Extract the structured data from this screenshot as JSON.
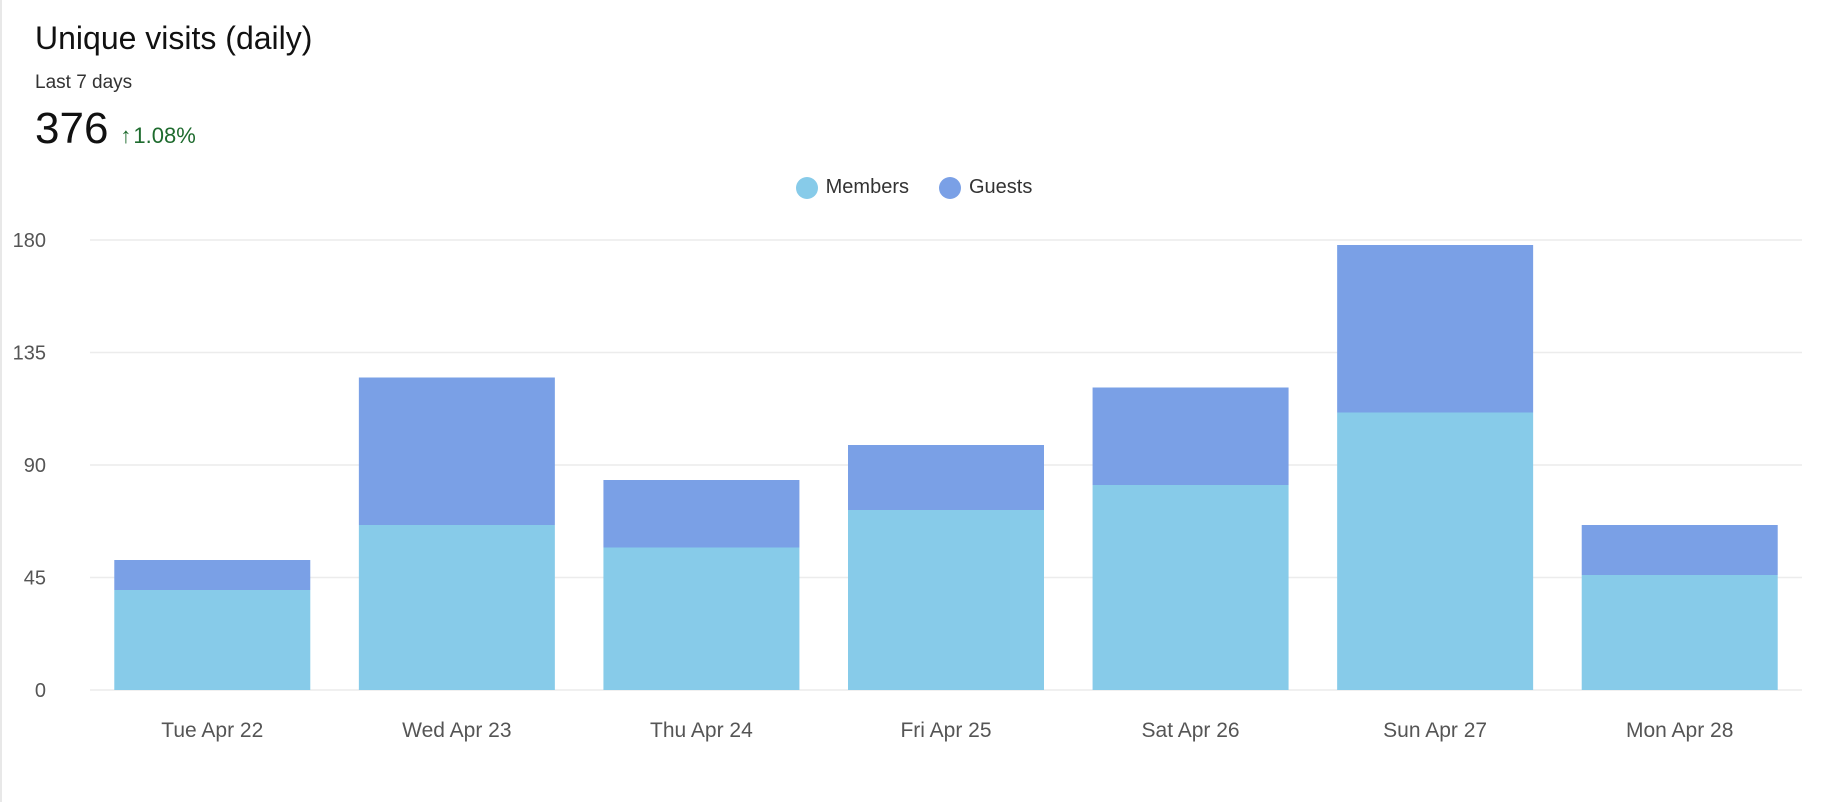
{
  "card": {
    "title": "Unique visits (daily)",
    "subtitle": "Last 7 days",
    "total": "376",
    "delta": "1.08%",
    "delta_icon": "arrow-up-icon",
    "delta_color": "#1e6b2e"
  },
  "chart_data": {
    "type": "bar",
    "stacked": true,
    "categories": [
      "Tue Apr 22",
      "Wed Apr 23",
      "Thu Apr 24",
      "Fri Apr 25",
      "Sat Apr 26",
      "Sun Apr 27",
      "Mon Apr 28"
    ],
    "series": [
      {
        "name": "Members",
        "color": "#87cbe9",
        "values": [
          40,
          66,
          57,
          72,
          82,
          111,
          46
        ]
      },
      {
        "name": "Guests",
        "color": "#7aa0e6",
        "values": [
          12,
          59,
          27,
          26,
          39,
          67,
          20
        ]
      }
    ],
    "yticks": [
      0,
      45,
      90,
      135,
      180
    ],
    "ylim": [
      0,
      180
    ],
    "grid": true,
    "legend_position": "top-center"
  }
}
